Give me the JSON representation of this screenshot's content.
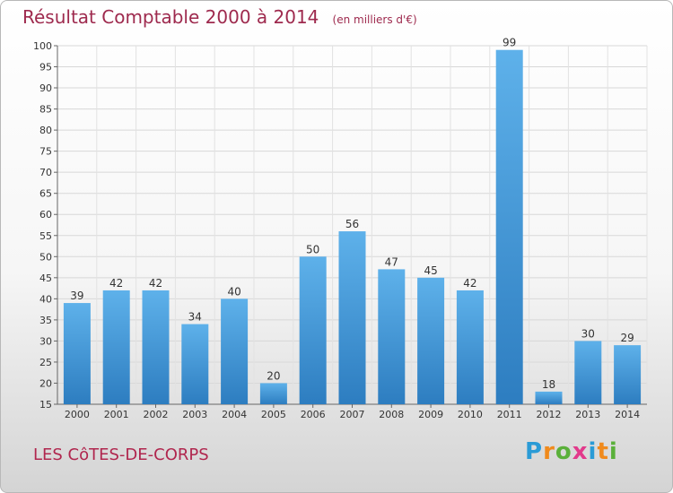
{
  "header": {
    "title": "Résultat Comptable 2000 à 2014",
    "unit": "(en milliers d'€)"
  },
  "footer": {
    "place": "LES CôTES-DE-CORPS",
    "brand": "Proxiti",
    "brand_colors": [
      "#2a9bd6",
      "#f08a1c",
      "#5ab03a",
      "#e23a8c",
      "#2a9bd6",
      "#f08a1c",
      "#5ab03a"
    ]
  },
  "colors": {
    "bar_top": "#5eb1ea",
    "bar_bottom": "#2d7dc0",
    "title": "#9e2a4e"
  },
  "chart_data": {
    "type": "bar",
    "title": "Résultat Comptable 2000 à 2014",
    "categories": [
      "2000",
      "2001",
      "2002",
      "2003",
      "2004",
      "2005",
      "2006",
      "2007",
      "2008",
      "2009",
      "2010",
      "2011",
      "2012",
      "2013",
      "2014"
    ],
    "values": [
      39,
      42,
      42,
      34,
      40,
      20,
      50,
      56,
      47,
      45,
      42,
      99,
      18,
      30,
      29
    ],
    "ylim": [
      15,
      100
    ],
    "yticks": [
      15,
      20,
      25,
      30,
      35,
      40,
      45,
      50,
      55,
      60,
      65,
      70,
      75,
      80,
      85,
      90,
      95,
      100
    ],
    "grid": true
  }
}
